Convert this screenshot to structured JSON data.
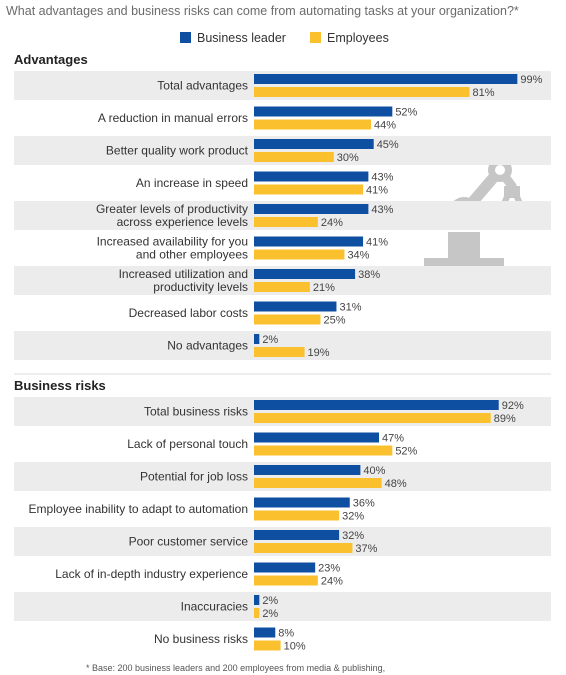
{
  "chart_data": {
    "type": "bar",
    "title": "What advantages and business risks can come from automating tasks at your organization?*",
    "colors": {
      "business_leader": "#0e4fa1",
      "employees": "#fbc02d",
      "band": "#ececec",
      "watermark": "#c6c6c6"
    },
    "legend": [
      {
        "name": "Business leader",
        "color": "#0e4fa1"
      },
      {
        "name": "Employees",
        "color": "#fbc02d"
      }
    ],
    "xlim": [
      0,
      100
    ],
    "value_suffix": "%",
    "groups": [
      {
        "name": "Advantages",
        "categories": [
          "Total advantages",
          "A reduction in manual errors",
          "Better quality work product",
          "An increase in speed",
          "Greater levels of productivity\nacross experience levels",
          "Increased availability for you\nand other employees",
          "Increased utilization and\nproductivity levels",
          "Decreased labor costs",
          "No advantages"
        ],
        "series": [
          {
            "name": "Business leader",
            "values": [
              99,
              52,
              45,
              43,
              43,
              41,
              38,
              31,
              2
            ]
          },
          {
            "name": "Employees",
            "values": [
              81,
              44,
              30,
              41,
              24,
              34,
              21,
              25,
              19
            ]
          }
        ]
      },
      {
        "name": "Business risks",
        "categories": [
          "Total business risks",
          "Lack of personal touch",
          "Potential for job loss",
          "Employee inability to adapt to automation",
          "Poor customer service",
          "Lack of in-depth industry experience",
          "Inaccuracies",
          "No business risks"
        ],
        "series": [
          {
            "name": "Business leader",
            "values": [
              92,
              47,
              40,
              36,
              32,
              23,
              2,
              8
            ]
          },
          {
            "name": "Employees",
            "values": [
              89,
              52,
              48,
              32,
              37,
              24,
              2,
              10
            ]
          }
        ]
      }
    ],
    "footnote": "* Base: 200 business leaders and 200 employees from media & publishing,"
  }
}
